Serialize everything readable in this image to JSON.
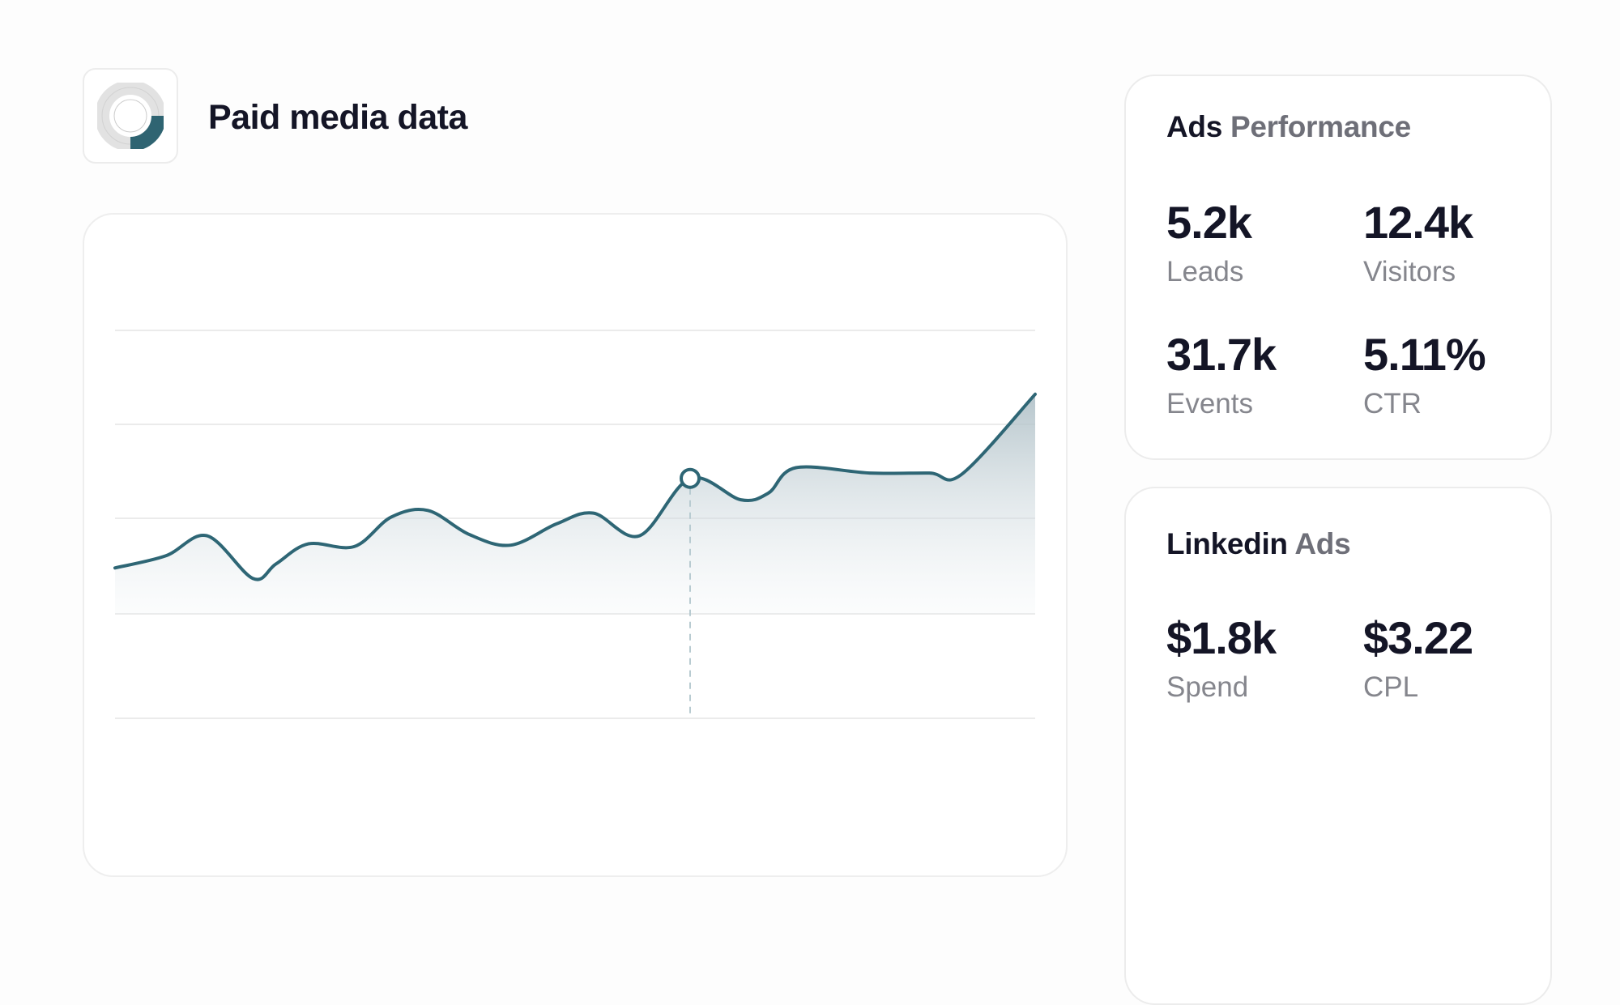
{
  "header": {
    "title": "Paid media data",
    "icon": "donut-chart-icon"
  },
  "colors": {
    "accent": "#2e6675",
    "fill": "#c0d2d8",
    "grid": "#e9e9e9",
    "text": "#141526",
    "muted": "#85868d"
  },
  "ads_performance": {
    "title_strong": "Ads",
    "title_muted": "Performance",
    "metrics": [
      {
        "value": "5.2k",
        "label": "Leads"
      },
      {
        "value": "12.4k",
        "label": "Visitors"
      },
      {
        "value": "31.7k",
        "label": "Events"
      },
      {
        "value": "5.11%",
        "label": "CTR"
      }
    ]
  },
  "linkedin_ads": {
    "title_strong": "Linkedin",
    "title_muted": "Ads",
    "metrics": [
      {
        "value": "$1.8k",
        "label": "Spend"
      },
      {
        "value": "$3.22",
        "label": "CPL"
      }
    ]
  },
  "chart_data": {
    "type": "area",
    "title": "",
    "xlabel": "",
    "ylabel": "",
    "grid": true,
    "x": [
      0,
      0.055,
      0.1,
      0.15,
      0.175,
      0.21,
      0.26,
      0.3,
      0.34,
      0.385,
      0.43,
      0.48,
      0.52,
      0.57,
      0.625,
      0.68,
      0.71,
      0.74,
      0.82,
      0.885,
      0.92,
      1.0
    ],
    "series": [
      {
        "values": [
          15,
          24,
          39,
          7,
          18,
          33,
          31,
          53,
          58,
          40,
          32,
          48,
          56,
          39,
          82,
          66,
          71,
          90,
          86,
          86,
          85,
          145
        ],
        "highlight_index": 14
      }
    ]
  }
}
